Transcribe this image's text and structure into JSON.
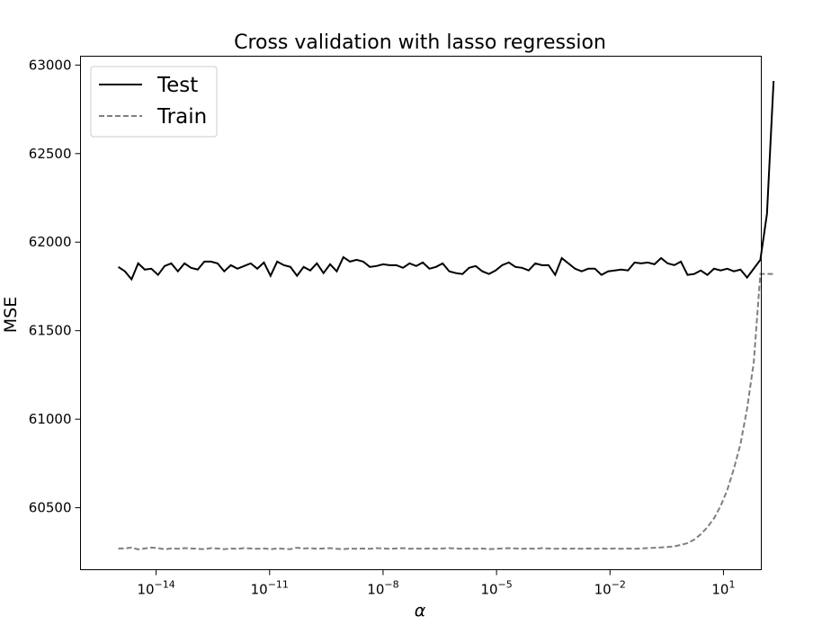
{
  "chart_data": {
    "type": "line",
    "title": "Cross validation with lasso regression",
    "xlabel": "α",
    "ylabel": "MSE",
    "xscale": "log",
    "xlim": [
      1e-16,
      100
    ],
    "ylim": [
      60150,
      63050
    ],
    "grid": false,
    "legend_position": "upper-left",
    "x_ticks": [
      {
        "value": 1e-14,
        "base": "10",
        "exp": "−14"
      },
      {
        "value": 1e-11,
        "base": "10",
        "exp": "−11"
      },
      {
        "value": 1e-08,
        "base": "10",
        "exp": "−8"
      },
      {
        "value": 1e-05,
        "base": "10",
        "exp": "−5"
      },
      {
        "value": 0.01,
        "base": "10",
        "exp": "−2"
      },
      {
        "value": 10,
        "base": "10",
        "exp": "1"
      }
    ],
    "y_ticks": [
      {
        "value": 60500,
        "label": "60500"
      },
      {
        "value": 61000,
        "label": "61000"
      },
      {
        "value": 61500,
        "label": "61500"
      },
      {
        "value": 62000,
        "label": "62000"
      },
      {
        "value": 62500,
        "label": "62500"
      },
      {
        "value": 63000,
        "label": "63000"
      }
    ],
    "log10_alpha_start": -15,
    "log10_alpha_step": 0.175,
    "series": [
      {
        "name": "Test",
        "color": "#000000",
        "linestyle": "solid",
        "values": [
          61860,
          61835,
          61790,
          61880,
          61845,
          61850,
          61815,
          61865,
          61880,
          61835,
          61880,
          61855,
          61845,
          61890,
          61890,
          61880,
          61835,
          61870,
          61850,
          61865,
          61880,
          61850,
          61885,
          61810,
          61890,
          61870,
          61860,
          61810,
          61860,
          61840,
          61880,
          61825,
          61875,
          61835,
          61915,
          61890,
          61900,
          61890,
          61860,
          61865,
          61875,
          61870,
          61870,
          61855,
          61880,
          61865,
          61885,
          61850,
          61860,
          61880,
          61835,
          61825,
          61820,
          61855,
          61865,
          61835,
          61820,
          61840,
          61870,
          61885,
          61860,
          61855,
          61840,
          61880,
          61870,
          61870,
          61815,
          61910,
          61880,
          61850,
          61835,
          61850,
          61850,
          61815,
          61835,
          61840,
          61845,
          61840,
          61885,
          61880,
          61885,
          61875,
          61910,
          61880,
          61870,
          61890,
          61815,
          61820,
          61840,
          61815,
          61850,
          61840,
          61850,
          61835,
          61845,
          61800,
          61850,
          61900,
          62160,
          62910
        ]
      },
      {
        "name": "Train",
        "color": "#7f7f7f",
        "linestyle": "dashed",
        "values": [
          60270,
          60270,
          60275,
          60265,
          60270,
          60275,
          60272,
          60265,
          60270,
          60268,
          60272,
          60270,
          60268,
          60266,
          60272,
          60270,
          60266,
          60270,
          60268,
          60272,
          60270,
          60268,
          60270,
          60266,
          60270,
          60268,
          60266,
          60274,
          60270,
          60272,
          60268,
          60270,
          60272,
          60268,
          60266,
          60270,
          60268,
          60270,
          60268,
          60272,
          60270,
          60268,
          60270,
          60272,
          60268,
          60270,
          60268,
          60270,
          60268,
          60270,
          60272,
          60270,
          60268,
          60270,
          60268,
          60270,
          60266,
          60268,
          60270,
          60272,
          60270,
          60268,
          60270,
          60268,
          60272,
          60270,
          60268,
          60270,
          60268,
          60270,
          60268,
          60270,
          60268,
          60270,
          60268,
          60270,
          60268,
          60270,
          60268,
          60270,
          60272,
          60274,
          60276,
          60278,
          60282,
          60290,
          60300,
          60320,
          60350,
          60390,
          60440,
          60510,
          60600,
          60720,
          60860,
          61060,
          61320,
          61820,
          61820,
          61820
        ]
      }
    ]
  }
}
